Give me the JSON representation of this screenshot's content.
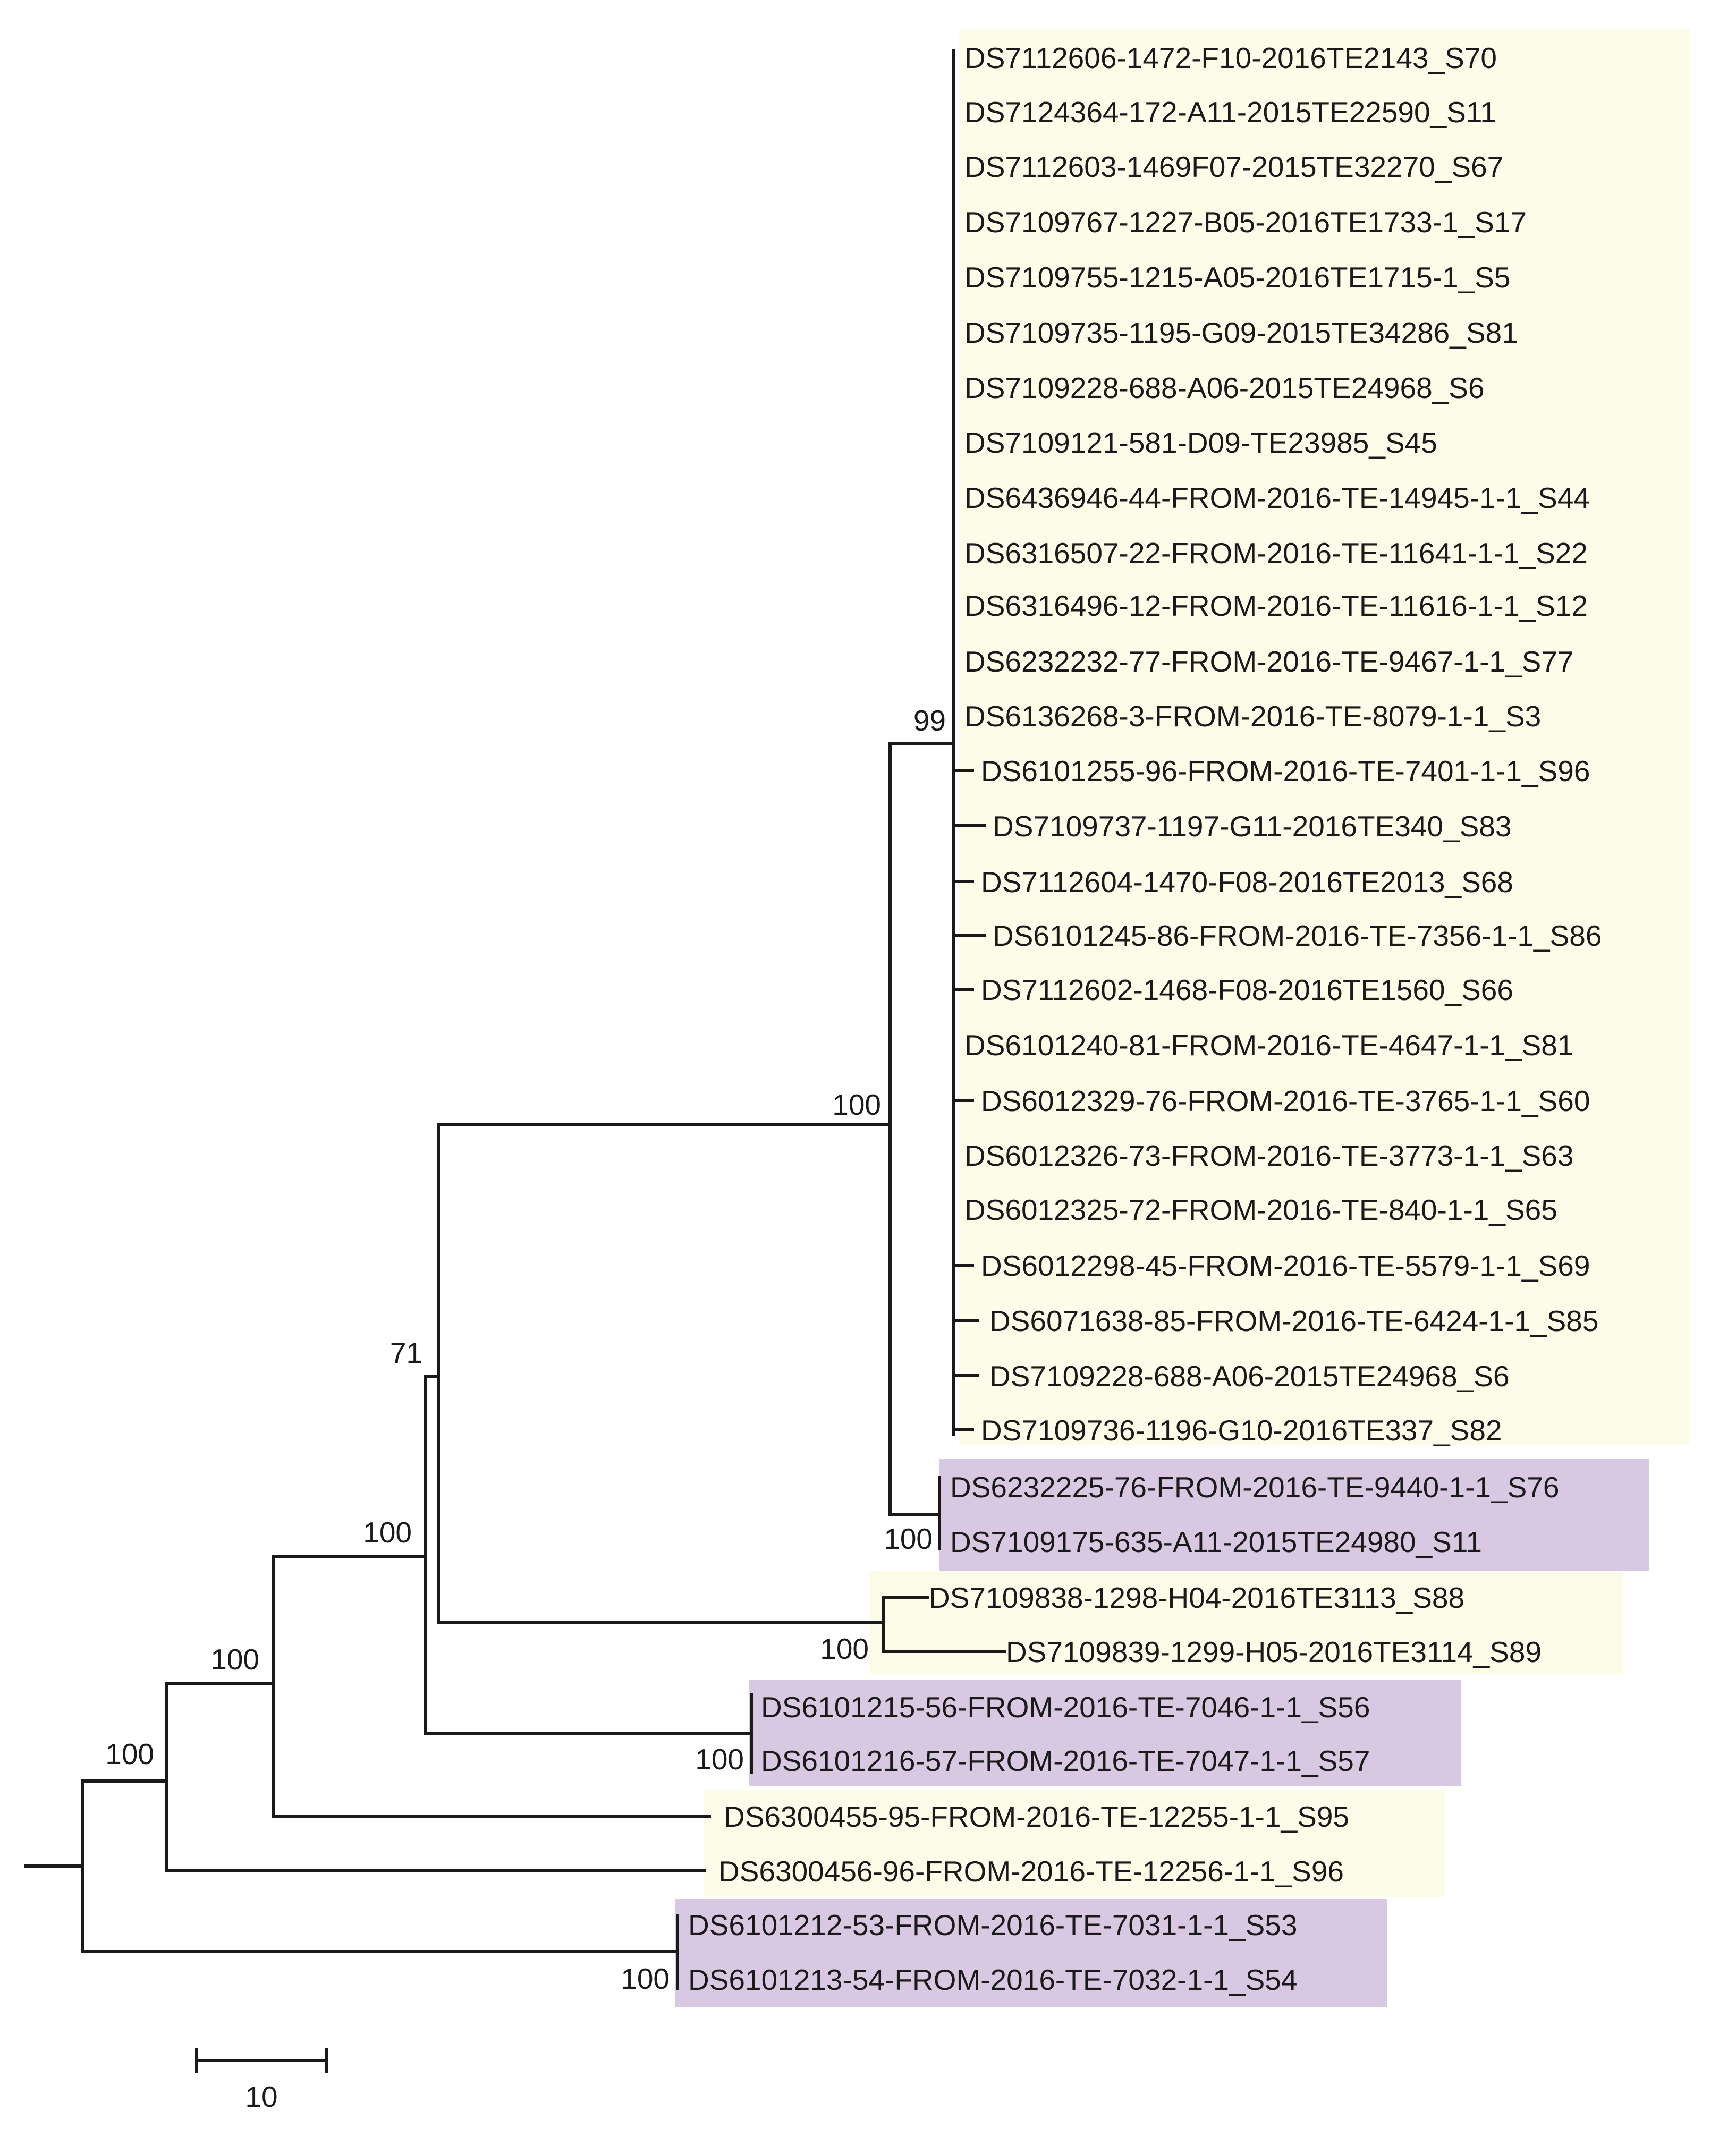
{
  "colors": {
    "clade_yellow": "#FDFCE9",
    "clade_purple": "#D9C8E2",
    "branch": "#1a1a1a",
    "text": "#1a1a1a"
  },
  "scale_bar": {
    "label": "10"
  },
  "leaves": [
    {
      "label": "DS7112606-1472-F10-2016TE2143_S70",
      "clade": "yellow"
    },
    {
      "label": "DS7124364-172-A11-2015TE22590_S11",
      "clade": "yellow"
    },
    {
      "label": "DS7112603-1469F07-2015TE32270_S67",
      "clade": "yellow"
    },
    {
      "label": "DS7109767-1227-B05-2016TE1733-1_S17",
      "clade": "yellow"
    },
    {
      "label": "DS7109755-1215-A05-2016TE1715-1_S5",
      "clade": "yellow"
    },
    {
      "label": "DS7109735-1195-G09-2015TE34286_S81",
      "clade": "yellow"
    },
    {
      "label": "DS7109228-688-A06-2015TE24968_S6",
      "clade": "yellow"
    },
    {
      "label": "DS7109121-581-D09-TE23985_S45",
      "clade": "yellow"
    },
    {
      "label": "DS6436946-44-FROM-2016-TE-14945-1-1_S44",
      "clade": "yellow"
    },
    {
      "label": "DS6316507-22-FROM-2016-TE-11641-1-1_S22",
      "clade": "yellow"
    },
    {
      "label": "DS6316496-12-FROM-2016-TE-11616-1-1_S12",
      "clade": "yellow"
    },
    {
      "label": "DS6232232-77-FROM-2016-TE-9467-1-1_S77",
      "clade": "yellow"
    },
    {
      "label": "DS6136268-3-FROM-2016-TE-8079-1-1_S3",
      "clade": "yellow"
    },
    {
      "label": "DS6101255-96-FROM-2016-TE-7401-1-1_S96",
      "clade": "yellow"
    },
    {
      "label": "DS7109737-1197-G11-2016TE340_S83",
      "clade": "yellow"
    },
    {
      "label": "DS7112604-1470-F08-2016TE2013_S68",
      "clade": "yellow"
    },
    {
      "label": "DS6101245-86-FROM-2016-TE-7356-1-1_S86",
      "clade": "yellow"
    },
    {
      "label": "DS7112602-1468-F08-2016TE1560_S66",
      "clade": "yellow"
    },
    {
      "label": "DS6101240-81-FROM-2016-TE-4647-1-1_S81",
      "clade": "yellow"
    },
    {
      "label": "DS6012329-76-FROM-2016-TE-3765-1-1_S60",
      "clade": "yellow"
    },
    {
      "label": "DS6012326-73-FROM-2016-TE-3773-1-1_S63",
      "clade": "yellow"
    },
    {
      "label": "DS6012325-72-FROM-2016-TE-840-1-1_S65",
      "clade": "yellow"
    },
    {
      "label": "DS6012298-45-FROM-2016-TE-5579-1-1_S69",
      "clade": "yellow"
    },
    {
      "label": "DS6071638-85-FROM-2016-TE-6424-1-1_S85",
      "clade": "yellow"
    },
    {
      "label": "DS7109228-688-A06-2015TE24968_S6",
      "clade": "yellow"
    },
    {
      "label": "DS7109736-1196-G10-2016TE337_S82",
      "clade": "yellow"
    },
    {
      "label": "DS6232225-76-FROM-2016-TE-9440-1-1_S76",
      "clade": "purple"
    },
    {
      "label": "DS7109175-635-A11-2015TE24980_S11",
      "clade": "purple"
    },
    {
      "label": "DS7109838-1298-H04-2016TE3113_S88",
      "clade": "yellow"
    },
    {
      "label": "DS7109839-1299-H05-2016TE3114_S89",
      "clade": "yellow"
    },
    {
      "label": "DS6101215-56-FROM-2016-TE-7046-1-1_S56",
      "clade": "purple"
    },
    {
      "label": "DS6101216-57-FROM-2016-TE-7047-1-1_S57",
      "clade": "purple"
    },
    {
      "label": "DS6300455-95-FROM-2016-TE-12255-1-1_S95",
      "clade": "yellow"
    },
    {
      "label": "DS6300456-96-FROM-2016-TE-12256-1-1_S96",
      "clade": "yellow"
    },
    {
      "label": "DS6101212-53-FROM-2016-TE-7031-1-1_S53",
      "clade": "purple"
    },
    {
      "label": "DS6101213-54-FROM-2016-TE-7032-1-1_S54",
      "clade": "purple"
    }
  ],
  "support_values": [
    {
      "node": "n99",
      "label": "99"
    },
    {
      "node": "n100a",
      "label": "100"
    },
    {
      "node": "n100p1",
      "label": "100"
    },
    {
      "node": "n71",
      "label": "71"
    },
    {
      "node": "n100b",
      "label": "100"
    },
    {
      "node": "n100y2",
      "label": "100"
    },
    {
      "node": "n100c",
      "label": "100"
    },
    {
      "node": "n100p2",
      "label": "100"
    },
    {
      "node": "n100d",
      "label": "100"
    },
    {
      "node": "n100p3",
      "label": "100"
    }
  ]
}
